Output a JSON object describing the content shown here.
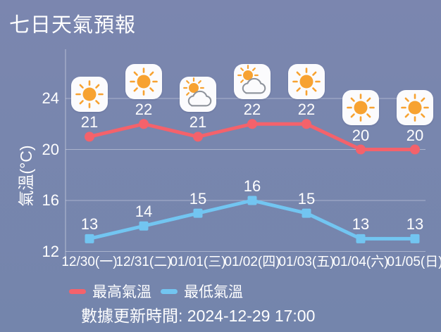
{
  "title": "七日天氣預報",
  "y_axis_label": "氣溫(°C)",
  "legend": [
    {
      "label": "最高氣溫",
      "color": "#f4626b"
    },
    {
      "label": "最低氣溫",
      "color": "#72c5f1"
    }
  ],
  "footer": "數據更新時間: 2024-12-29 17:00",
  "colors": {
    "background_top": "#7b86af",
    "background_bottom": "#7485ac",
    "text": "#ffffff",
    "grid": "rgba(255,255,255,0.38)",
    "high_line": "#f4626b",
    "low_line": "#72c5f1",
    "sun": "#f7a231",
    "cloud_outline": "#8e939c",
    "icon_background": "#fbfbfd"
  },
  "chart_data": {
    "type": "line",
    "title": "七日天氣預報",
    "categories": [
      "12/30(一)",
      "12/31(二)",
      "01/01(三)",
      "01/02(四)",
      "01/03(五)",
      "01/04(六)",
      "01/05(日)"
    ],
    "icons": [
      "sunny",
      "sunny",
      "partly-cloudy",
      "partly-cloudy",
      "sunny",
      "sunny",
      "sunny"
    ],
    "series": [
      {
        "name": "最高氣溫",
        "color": "#f4626b",
        "marker": "circle",
        "values": [
          21,
          22,
          21,
          22,
          22,
          20,
          20
        ]
      },
      {
        "name": "最低氣溫",
        "color": "#72c5f1",
        "marker": "square",
        "values": [
          13,
          14,
          15,
          16,
          15,
          13,
          13
        ]
      }
    ],
    "xlabel": "",
    "ylabel": "氣溫(°C)",
    "yticks": [
      24,
      20,
      16,
      12
    ],
    "ylim": [
      12,
      26
    ],
    "grid": true,
    "legend_position": "bottom",
    "data_updated": "2024-12-29 17:00"
  }
}
